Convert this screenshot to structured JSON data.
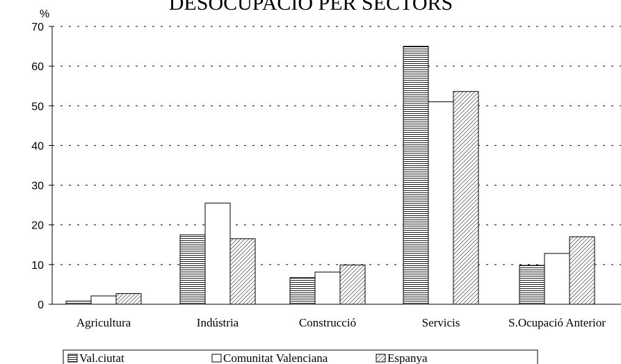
{
  "chart_data": {
    "type": "bar",
    "title": "DESOCUPACIÓ PER SECTORS",
    "y_unit_label": "%",
    "xlabel": "",
    "ylabel": "%",
    "ylim": [
      0,
      70
    ],
    "yticks": [
      0,
      10,
      20,
      30,
      40,
      50,
      60,
      70
    ],
    "grid": true,
    "legend_position": "bottom",
    "categories": [
      "Agricultura",
      "Indústria",
      "Construcció",
      "Servicis",
      "S.Ocupació Anterior"
    ],
    "series": [
      {
        "name": "Val.ciutat",
        "pattern": "horizontal-lines",
        "values": [
          0.8,
          17.5,
          6.7,
          65.0,
          9.8
        ]
      },
      {
        "name": "Comunitat Valenciana",
        "pattern": "none",
        "values": [
          2.1,
          25.5,
          8.1,
          51.0,
          12.8
        ]
      },
      {
        "name": "Espanya",
        "pattern": "diagonal-lines",
        "values": [
          2.7,
          16.5,
          9.9,
          53.6,
          17.0
        ]
      }
    ]
  }
}
